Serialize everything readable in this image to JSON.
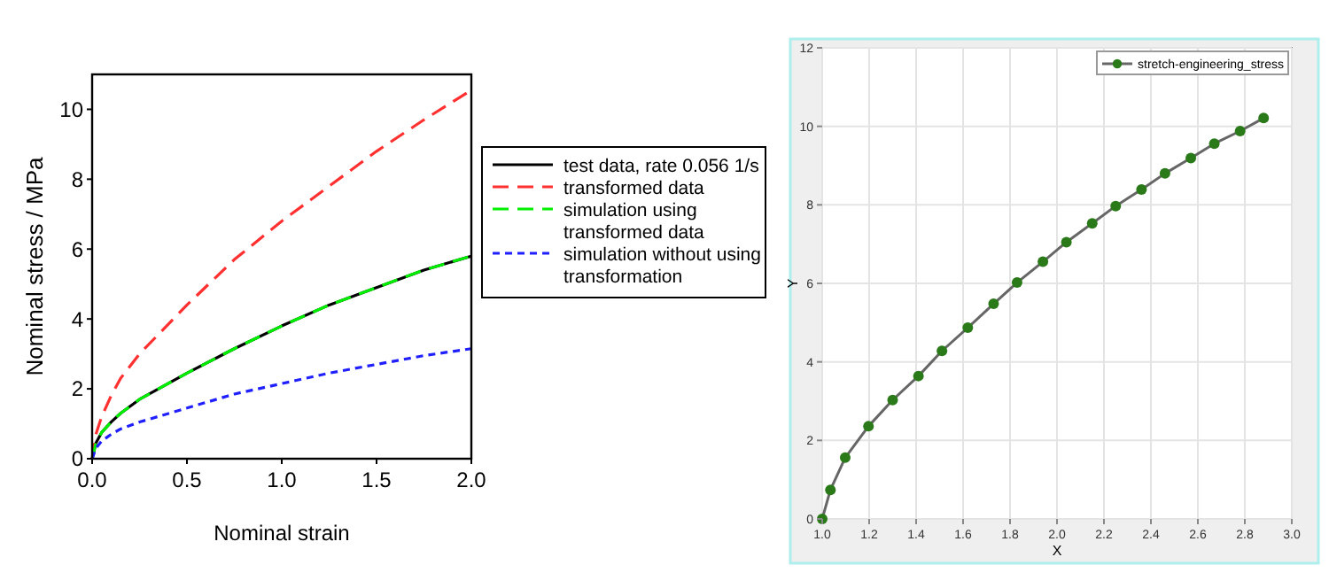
{
  "chart_data": [
    {
      "type": "line",
      "xlabel": "Nominal strain",
      "ylabel": "Nominal stress / MPa",
      "xlim": [
        0,
        2
      ],
      "ylim": [
        0,
        11
      ],
      "xticks": [
        {
          "value": 0,
          "label": "0.0"
        },
        {
          "value": 0.5,
          "label": "0.5"
        },
        {
          "value": 1,
          "label": "1.0"
        },
        {
          "value": 1.5,
          "label": "1.5"
        },
        {
          "value": 2,
          "label": "2.0"
        }
      ],
      "yticks": [
        0,
        2,
        4,
        6,
        8,
        10
      ],
      "grid": false,
      "legend": "right",
      "marker": "none",
      "series": [
        {
          "name": "test data, rate 0.056 1/s",
          "color": "#000000",
          "line_style": "solid",
          "x": [
            0,
            0.02,
            0.05,
            0.1,
            0.15,
            0.25,
            0.5,
            0.75,
            1,
            1.25,
            1.5,
            1.75,
            2
          ],
          "values": [
            0,
            0.45,
            0.75,
            1.05,
            1.3,
            1.7,
            2.45,
            3.15,
            3.8,
            4.4,
            4.9,
            5.4,
            5.8
          ]
        },
        {
          "name": "transformed data",
          "color": "#ff3030",
          "line_style": "dashed",
          "x": [
            0,
            0.02,
            0.05,
            0.1,
            0.15,
            0.25,
            0.5,
            0.75,
            1,
            1.25,
            1.5,
            1.75,
            2
          ],
          "values": [
            0,
            0.7,
            1.2,
            1.8,
            2.3,
            3.0,
            4.4,
            5.7,
            6.8,
            7.8,
            8.8,
            9.7,
            10.55
          ]
        },
        {
          "name": "simulation using transformed data",
          "color": "#00ee00",
          "line_style": "dashed",
          "x": [
            0,
            0.02,
            0.05,
            0.1,
            0.15,
            0.25,
            0.5,
            0.75,
            1,
            1.25,
            1.5,
            1.75,
            2
          ],
          "values": [
            0,
            0.45,
            0.75,
            1.05,
            1.3,
            1.7,
            2.45,
            3.15,
            3.8,
            4.4,
            4.9,
            5.4,
            5.8
          ]
        },
        {
          "name": "simulation without using transformation",
          "color": "#2020ff",
          "line_style": "dotted",
          "x": [
            0,
            0.02,
            0.05,
            0.1,
            0.15,
            0.25,
            0.5,
            0.75,
            1,
            1.25,
            1.5,
            1.75,
            2
          ],
          "values": [
            0,
            0.3,
            0.5,
            0.7,
            0.85,
            1.05,
            1.45,
            1.85,
            2.15,
            2.45,
            2.7,
            2.95,
            3.15
          ]
        }
      ]
    },
    {
      "type": "line",
      "xlabel": "X",
      "ylabel": "Y",
      "xlim": [
        1,
        3
      ],
      "ylim": [
        0,
        12
      ],
      "xticks": [
        {
          "value": 1,
          "label": "1.0"
        },
        {
          "value": 1.2,
          "label": "1.2"
        },
        {
          "value": 1.4,
          "label": "1.4"
        },
        {
          "value": 1.6,
          "label": "1.6"
        },
        {
          "value": 1.8,
          "label": "1.8"
        },
        {
          "value": 2,
          "label": "2.0"
        },
        {
          "value": 2.2,
          "label": "2.2"
        },
        {
          "value": 2.4,
          "label": "2.4"
        },
        {
          "value": 2.6,
          "label": "2.6"
        },
        {
          "value": 2.8,
          "label": "2.8"
        },
        {
          "value": 3,
          "label": "3.0"
        }
      ],
      "yticks": [
        0,
        2,
        4,
        6,
        8,
        10,
        12
      ],
      "grid": true,
      "legend": "top right",
      "marker": "circle",
      "series": [
        {
          "name": "stretch-engineering_stress",
          "color": "#2a7a1a",
          "line_style": "solid",
          "x": [
            1,
            1.035,
            1.098,
            1.197,
            1.3,
            1.41,
            1.51,
            1.62,
            1.73,
            1.83,
            1.94,
            2.04,
            2.15,
            2.25,
            2.36,
            2.46,
            2.57,
            2.67,
            2.78,
            2.88
          ],
          "values": [
            0,
            0.74,
            1.56,
            2.36,
            3.03,
            3.64,
            4.28,
            4.87,
            5.48,
            6.02,
            6.55,
            7.05,
            7.53,
            7.97,
            8.39,
            8.8,
            9.19,
            9.56,
            9.88,
            10.21
          ]
        }
      ]
    }
  ]
}
